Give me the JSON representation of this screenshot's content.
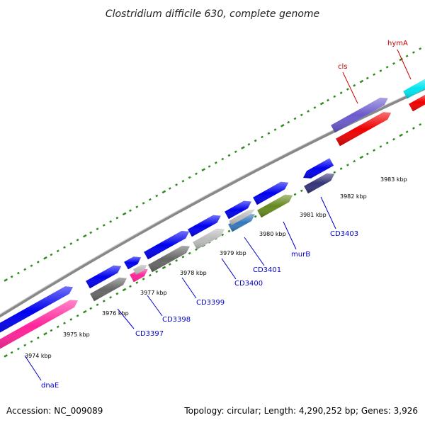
{
  "title": "Clostridium difficile 630, complete genome",
  "footer": {
    "accession_prefix": "Accession: ",
    "accession": "NC_009089",
    "topology_prefix": "Topology: ",
    "topology": "circular",
    "length_prefix": "; Length: ",
    "length": "4,290,252 bp",
    "genes_prefix": "; Genes: ",
    "genes": "3,926"
  },
  "ticks": [
    {
      "label": "3974 kbp"
    },
    {
      "label": "3975 kbp"
    },
    {
      "label": "3976 kbp"
    },
    {
      "label": "3977 kbp"
    },
    {
      "label": "3978 kbp"
    },
    {
      "label": "3979 kbp"
    },
    {
      "label": "3980 kbp"
    },
    {
      "label": "3981 kbp"
    },
    {
      "label": "3982 kbp"
    },
    {
      "label": "3983 kbp"
    }
  ],
  "gene_labels": [
    {
      "label": "dnaE",
      "color": "#0000cc"
    },
    {
      "label": "CD3397",
      "color": "#0000cc"
    },
    {
      "label": "CD3398",
      "color": "#0000cc"
    },
    {
      "label": "CD3399",
      "color": "#0000cc"
    },
    {
      "label": "CD3400",
      "color": "#0000cc"
    },
    {
      "label": "CD3401",
      "color": "#0000cc"
    },
    {
      "label": "murB",
      "color": "#0000cc"
    },
    {
      "label": "CD3403",
      "color": "#0000cc"
    },
    {
      "label": "cls",
      "color": "#cc0000"
    },
    {
      "label": "hymA",
      "color": "#cc0000"
    }
  ],
  "colors": {
    "backbone": "#888888",
    "tick": "#2e8b1e",
    "cds": "#0000ee",
    "cog_pink": "#ff2299",
    "cog_gray_dark": "#666666",
    "cog_gray_light": "#bbbbbb",
    "cog_blue_steel": "#3377bb",
    "cog_olive": "#66891f",
    "cog_navy": "#333377",
    "cog_purple": "#6a5acd",
    "cog_red": "#ee0000",
    "cog_cyan": "#00e5ee"
  }
}
